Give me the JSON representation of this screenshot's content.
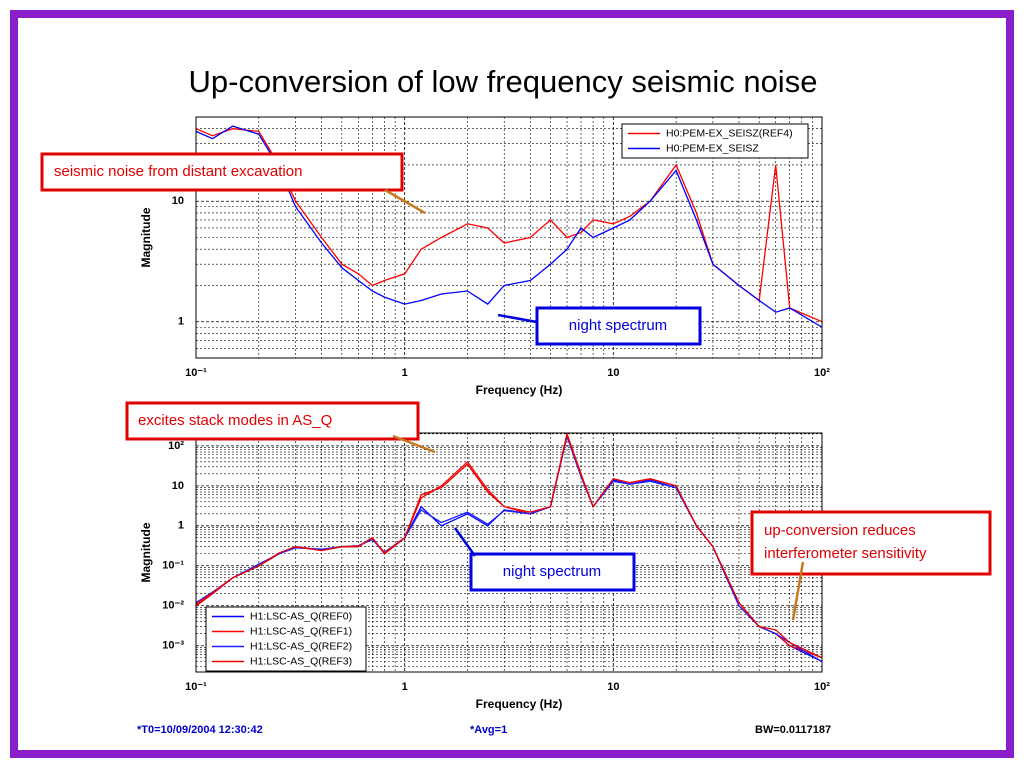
{
  "title": "Up-conversion of low frequency seismic noise",
  "annotations": {
    "excavation": "seismic noise from distant excavation",
    "night_top": "night spectrum",
    "stack_modes": "excites stack modes in AS_Q",
    "night_bottom": "night spectrum",
    "upconversion": [
      "up-conversion reduces",
      "interferometer sensitivity"
    ]
  },
  "footer": [
    "*T0=10/09/2004 12:30:42",
    "*Avg=1",
    "BW=0.0117187"
  ],
  "chart_data": [
    {
      "type": "line",
      "xlabel": "Frequency (Hz)",
      "ylabel": "Magnitude",
      "xscale": "log",
      "yscale": "log",
      "grid": true,
      "legend": "upper right",
      "xlim": [
        0.1,
        100
      ],
      "ylim": [
        0.5,
        50
      ],
      "xticks": [
        {
          "value": 0.1,
          "label": "10⁻¹"
        },
        1,
        10,
        {
          "value": 100,
          "label": "10²"
        }
      ],
      "yticks": [
        1,
        10
      ],
      "x": [
        0.1,
        0.12,
        0.15,
        0.2,
        0.25,
        0.3,
        0.4,
        0.5,
        0.6,
        0.7,
        0.8,
        1,
        1.2,
        1.5,
        2,
        2.5,
        3,
        4,
        5,
        6,
        7,
        8,
        10,
        12,
        15,
        20,
        25,
        30,
        40,
        50,
        60,
        70,
        100
      ],
      "series": [
        {
          "name": "H0:PEM-EX_SEISZ(REF4)",
          "color": "#ff0000",
          "values": [
            40,
            35,
            40,
            38,
            20,
            10,
            5,
            3,
            2.5,
            2,
            2.2,
            2.5,
            4,
            5,
            6.5,
            6,
            4.5,
            5,
            7,
            5,
            5.5,
            7,
            6.5,
            7.5,
            10,
            20,
            8,
            3,
            2,
            1.5,
            20,
            1.3,
            1
          ]
        },
        {
          "name": "H0:PEM-EX_SEISZ",
          "color": "#0000ff",
          "values": [
            38,
            33,
            42,
            36,
            19,
            9,
            4.5,
            2.8,
            2.2,
            1.8,
            1.6,
            1.4,
            1.5,
            1.7,
            1.8,
            1.4,
            2,
            2.2,
            3,
            4,
            6,
            5,
            6,
            7,
            10,
            18,
            7,
            3,
            2,
            1.5,
            1.2,
            1.3,
            0.9
          ]
        }
      ]
    },
    {
      "type": "line",
      "xlabel": "Frequency (Hz)",
      "ylabel": "Magnitude",
      "xscale": "log",
      "yscale": "log",
      "grid": true,
      "legend": "lower left",
      "xlim": [
        0.1,
        100
      ],
      "ylim": [
        0.00022,
        210
      ],
      "xticks": [
        {
          "value": 0.1,
          "label": "10⁻¹"
        },
        1,
        10,
        {
          "value": 100,
          "label": "10²"
        }
      ],
      "yticks": [
        {
          "value": 0.001,
          "label": "10⁻³"
        },
        {
          "value": 0.01,
          "label": "10⁻²"
        },
        {
          "value": 0.1,
          "label": "10⁻¹"
        },
        1,
        10,
        {
          "value": 100,
          "label": "10²"
        }
      ],
      "x": [
        0.1,
        0.12,
        0.15,
        0.2,
        0.25,
        0.3,
        0.4,
        0.5,
        0.6,
        0.7,
        0.8,
        1,
        1.2,
        1.5,
        2,
        2.5,
        3,
        4,
        5,
        6,
        7,
        8,
        10,
        12,
        15,
        20,
        25,
        30,
        40,
        50,
        60,
        70,
        100
      ],
      "series": [
        {
          "name": "H1:LSC-AS_Q(REF0)",
          "color": "#0000ff",
          "values": [
            0.01,
            0.02,
            0.05,
            0.1,
            0.2,
            0.3,
            0.25,
            0.3,
            0.3,
            0.5,
            0.2,
            0.5,
            3,
            1,
            2,
            1,
            2.5,
            2,
            3,
            180,
            18,
            3,
            14,
            11,
            14,
            9,
            1,
            0.3,
            0.01,
            0.003,
            0.002,
            0.001,
            0.0004
          ]
        },
        {
          "name": "H1:LSC-AS_Q(REF1)",
          "color": "#ff0000",
          "values": [
            0.01,
            0.02,
            0.05,
            0.1,
            0.2,
            0.3,
            0.25,
            0.3,
            0.3,
            0.5,
            0.2,
            0.5,
            5,
            10,
            40,
            8,
            3,
            2,
            3,
            200,
            20,
            3,
            15,
            12,
            15,
            10,
            1,
            0.3,
            0.01,
            0.003,
            0.002,
            0.001,
            0.0005
          ]
        },
        {
          "name": "H1:LSC-AS_Q(REF2)",
          "color": "#2020ff",
          "values": [
            0.012,
            0.022,
            0.05,
            0.11,
            0.2,
            0.28,
            0.26,
            0.3,
            0.32,
            0.45,
            0.22,
            0.5,
            2.5,
            1.2,
            2.2,
            1.1,
            2.4,
            2,
            3,
            170,
            17,
            3,
            13,
            11,
            13,
            9,
            1,
            0.3,
            0.01,
            0.003,
            0.002,
            0.0012,
            0.0004
          ]
        },
        {
          "name": "H1:LSC-AS_Q(REF3)",
          "color": "#ee0000",
          "values": [
            0.011,
            0.021,
            0.05,
            0.1,
            0.21,
            0.3,
            0.24,
            0.3,
            0.31,
            0.5,
            0.21,
            0.5,
            6,
            9,
            35,
            7,
            3,
            2.2,
            3,
            190,
            19,
            3,
            15,
            12,
            15,
            10,
            1,
            0.3,
            0.012,
            0.003,
            0.0025,
            0.0012,
            0.0005
          ]
        }
      ]
    }
  ]
}
